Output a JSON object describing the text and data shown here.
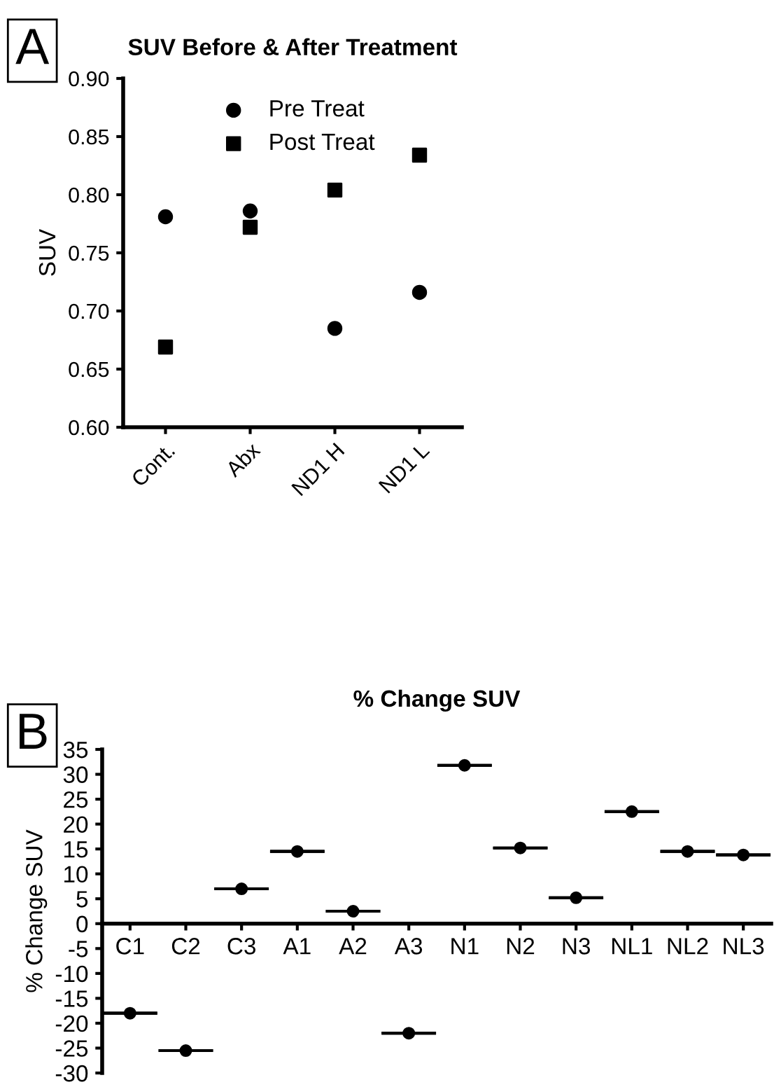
{
  "chart_data": [
    {
      "type": "scatter",
      "title": "SUV Before & After Treatment",
      "ylabel": "SUV",
      "annotations": [
        "A"
      ],
      "categories": [
        "Cont.",
        "Abx",
        "ND1 H",
        "ND1 L"
      ],
      "series": [
        {
          "name": "Pre Treat",
          "color": "#000000",
          "marker": "circle",
          "values": [
            0.781,
            0.786,
            0.685,
            0.716
          ]
        },
        {
          "name": "Post Treat",
          "color": "#000000",
          "marker": "square",
          "values": [
            0.669,
            0.772,
            0.804,
            0.834
          ]
        }
      ],
      "ylim": [
        0.6,
        0.9
      ],
      "yticks": [
        {
          "value": 0.6,
          "label": "0.60"
        },
        {
          "value": 0.65,
          "label": "0.65"
        },
        {
          "value": 0.7,
          "label": "0.70"
        },
        {
          "value": 0.75,
          "label": "0.75"
        },
        {
          "value": 0.8,
          "label": "0.80"
        },
        {
          "value": 0.85,
          "label": "0.85"
        },
        {
          "value": 0.9,
          "label": "0.90"
        }
      ],
      "grid": false,
      "legend": "top"
    },
    {
      "type": "scatter",
      "title": "% Change SUV",
      "ylabel": "% Change SUV",
      "annotations": [
        "B"
      ],
      "categories": [
        "C1",
        "C2",
        "C3",
        "A1",
        "A2",
        "A3",
        "N1",
        "N2",
        "N3",
        "NL1",
        "NL2",
        "NL3"
      ],
      "series": [
        {
          "color": "#000000",
          "marker": "circle",
          "values": [
            -18,
            -25.5,
            7,
            14.5,
            2.5,
            -22,
            31.8,
            15.2,
            5.2,
            22.5,
            14.5,
            13.8
          ],
          "errors": [
            0,
            0,
            0,
            0,
            0,
            0,
            0,
            0,
            0,
            0,
            0,
            0
          ]
        }
      ],
      "ylim": [
        -30,
        35
      ],
      "yticks": [
        -30,
        -25,
        -20,
        -15,
        -10,
        -5,
        0,
        5,
        10,
        15,
        20,
        25,
        30,
        35
      ],
      "grid": false,
      "legend": false
    }
  ]
}
